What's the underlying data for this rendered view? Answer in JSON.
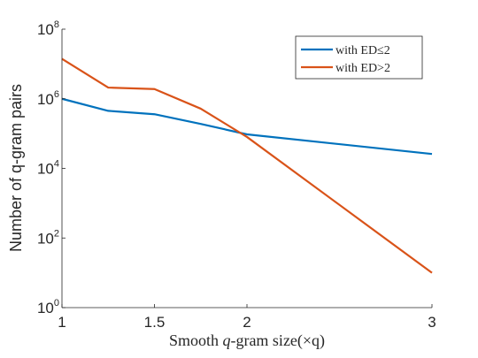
{
  "chart_data": {
    "type": "line",
    "title": "",
    "xlabel_prefix": "Smooth ",
    "xlabel_var": "q",
    "xlabel_suffix": "-gram size(×q)",
    "ylabel": "Number of q-gram pairs",
    "yscale": "log",
    "xlim": [
      1,
      3
    ],
    "ylim": [
      1,
      100000000
    ],
    "xticks": [
      1,
      1.5,
      2,
      3
    ],
    "xtick_labels": [
      "1",
      "1.5",
      "2",
      "3"
    ],
    "yticks": [
      1,
      100,
      10000,
      1000000,
      100000000
    ],
    "ytick_base": "10",
    "ytick_exponents": [
      "0",
      "2",
      "4",
      "6",
      "8"
    ],
    "grid": false,
    "legend_position": "top-right",
    "series": [
      {
        "name": "with ED≤2",
        "color": "#0072BD",
        "x": [
          1,
          1.25,
          1.5,
          1.75,
          2,
          3
        ],
        "y": [
          1000000,
          450000,
          360000,
          190000,
          95000,
          26000
        ]
      },
      {
        "name": "with ED>2",
        "color": "#D95319",
        "x": [
          1,
          1.25,
          1.5,
          1.75,
          2,
          3
        ],
        "y": [
          14000000,
          2100000,
          1900000,
          520000,
          80000,
          10
        ]
      }
    ]
  }
}
